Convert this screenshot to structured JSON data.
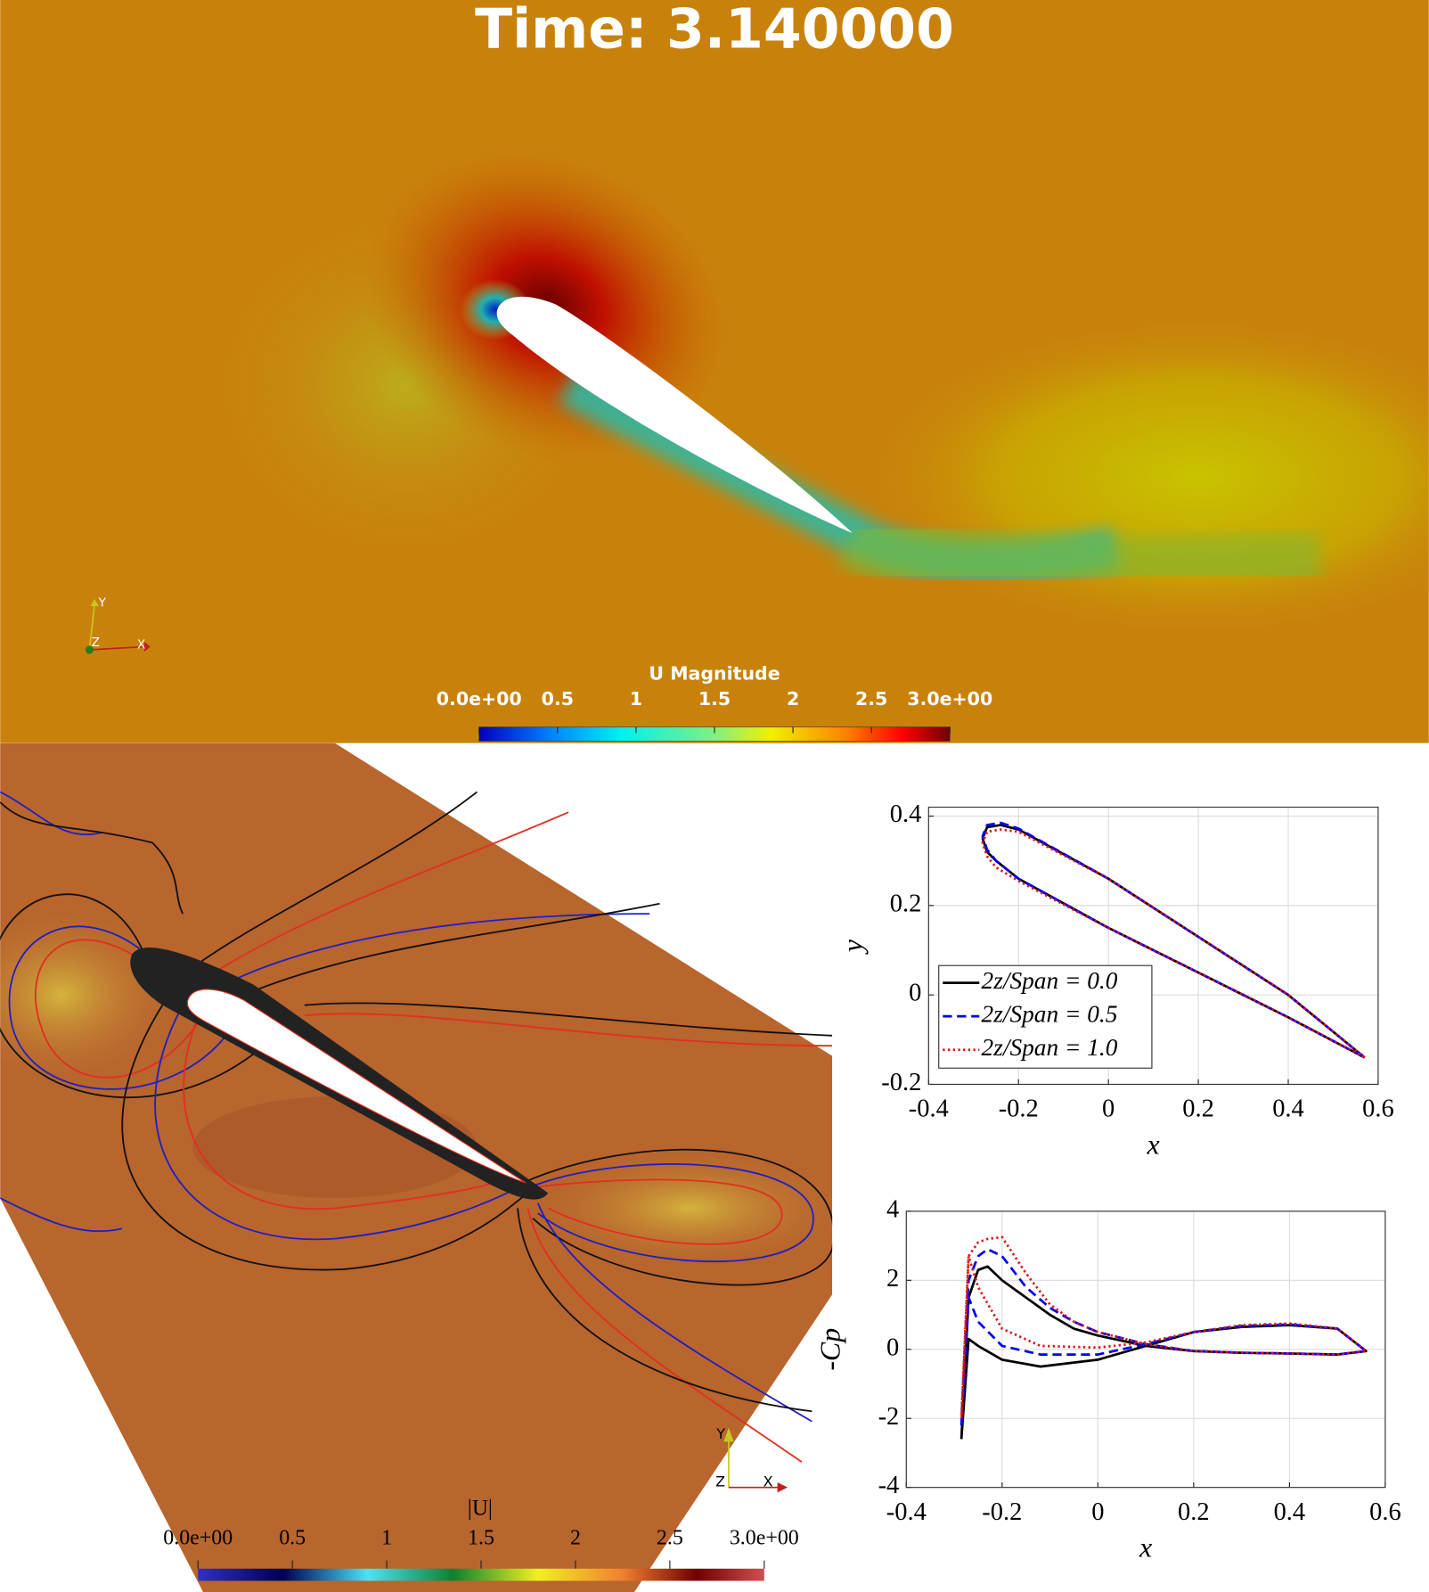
{
  "top_panel": {
    "title": "Time: 3.140000",
    "colorbar": {
      "title": "U Magnitude",
      "lim": [
        0,
        3
      ],
      "ticks": [
        {
          "value": 0,
          "label": "0.0e+00"
        },
        0.5,
        1,
        1.5,
        2,
        2.5,
        {
          "value": 3,
          "label": "3.0e+00"
        }
      ]
    },
    "triad": {
      "x": "X",
      "y": "Y",
      "z": "Z"
    }
  },
  "bottom_panel": {
    "colorbar": {
      "title": "|U|",
      "lim": [
        0,
        3
      ],
      "ticks": [
        {
          "value": 0,
          "label": "0.0e+00"
        },
        0.5,
        1,
        1.5,
        2,
        2.5,
        {
          "value": 3,
          "label": "3.0e+00"
        }
      ]
    },
    "triad": {
      "x": "X",
      "y": "Y",
      "z": "Z"
    }
  },
  "chart_data": [
    {
      "type": "line",
      "xlabel": "x",
      "ylabel": "y",
      "xlim": [
        -0.4,
        0.6
      ],
      "ylim": [
        -0.2,
        0.42
      ],
      "xticks": [
        -0.4,
        -0.2,
        0,
        0.2,
        0.4,
        0.6
      ],
      "yticks": [
        -0.2,
        0,
        0.2,
        0.4
      ],
      "grid": true,
      "legend": "lower left",
      "x": [
        0.57,
        0.4,
        0.2,
        0,
        -0.2,
        -0.24,
        -0.27,
        -0.28,
        -0.27,
        -0.25,
        -0.2,
        0,
        0.2,
        0.4,
        0.57
      ],
      "series": [
        {
          "name": "2z/Span = 0.0",
          "color": "#000000",
          "linestyle": "solid",
          "values": [
            -0.14,
            0.0,
            0.13,
            0.26,
            0.37,
            0.38,
            0.375,
            0.35,
            0.32,
            0.3,
            0.26,
            0.15,
            0.05,
            -0.05,
            -0.14
          ]
        },
        {
          "name": "2z/Span = 0.5",
          "color": "#0000ee",
          "linestyle": "dashed",
          "values": [
            -0.14,
            0.0,
            0.13,
            0.26,
            0.372,
            0.385,
            0.38,
            0.355,
            0.325,
            0.3,
            0.26,
            0.15,
            0.05,
            -0.05,
            -0.14
          ]
        },
        {
          "name": "2z/Span = 1.0",
          "color": "#dd1111",
          "linestyle": "dotted",
          "values": [
            -0.14,
            0.0,
            0.13,
            0.26,
            0.365,
            0.37,
            0.365,
            0.34,
            0.31,
            0.285,
            0.255,
            0.15,
            0.05,
            -0.05,
            -0.14
          ]
        }
      ]
    },
    {
      "type": "line",
      "xlabel": "x",
      "ylabel": "-Cp",
      "xlim": [
        -0.4,
        0.6
      ],
      "ylim": [
        -4,
        4
      ],
      "xticks": [
        -0.4,
        -0.2,
        0,
        0.2,
        0.4,
        0.6
      ],
      "yticks": [
        -4,
        -2,
        0,
        2,
        4
      ],
      "grid": true,
      "x": [
        -0.285,
        -0.27,
        -0.25,
        -0.23,
        -0.2,
        -0.15,
        -0.1,
        -0.05,
        0,
        0.1,
        0.2,
        0.3,
        0.4,
        0.5,
        0.56,
        0.5,
        0.4,
        0.3,
        0.2,
        0.1,
        0,
        -0.12,
        -0.2,
        -0.25,
        -0.27,
        -0.285
      ],
      "series": [
        {
          "color": "#000000",
          "linestyle": "solid",
          "values": [
            -2.6,
            1.5,
            2.3,
            2.4,
            2.0,
            1.5,
            1.0,
            0.6,
            0.4,
            0.1,
            -0.05,
            -0.1,
            -0.12,
            -0.15,
            -0.05,
            0.6,
            0.7,
            0.65,
            0.5,
            0.1,
            -0.3,
            -0.5,
            -0.3,
            0.1,
            0.3,
            -2.6
          ]
        },
        {
          "color": "#0000ee",
          "linestyle": "dashed",
          "values": [
            -2.2,
            2.0,
            2.7,
            2.9,
            2.7,
            1.8,
            1.2,
            0.8,
            0.5,
            0.15,
            -0.05,
            -0.1,
            -0.12,
            -0.15,
            -0.05,
            0.6,
            0.72,
            0.68,
            0.5,
            0.15,
            -0.15,
            -0.15,
            0.1,
            0.8,
            1.5,
            -2.2
          ]
        },
        {
          "color": "#dd1111",
          "linestyle": "dotted",
          "values": [
            -2.0,
            2.7,
            3.1,
            3.2,
            3.25,
            2.2,
            1.3,
            0.8,
            0.5,
            0.15,
            -0.05,
            -0.1,
            -0.12,
            -0.15,
            -0.05,
            0.6,
            0.75,
            0.7,
            0.5,
            0.2,
            0.05,
            0.1,
            0.6,
            1.8,
            2.7,
            -2.0
          ]
        }
      ]
    }
  ]
}
